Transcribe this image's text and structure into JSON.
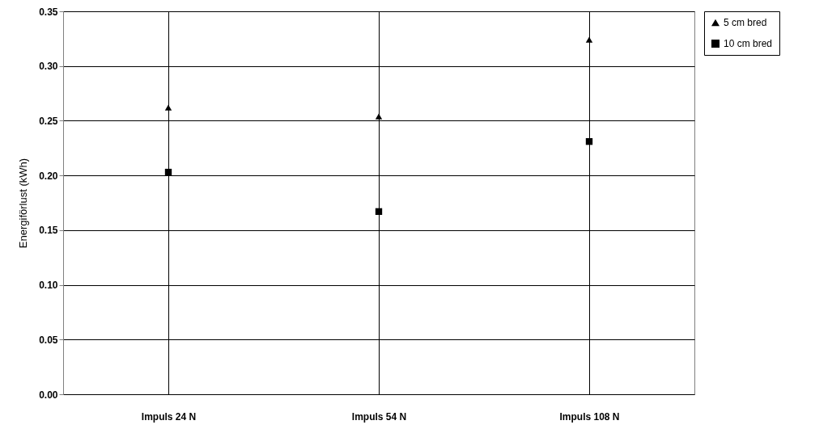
{
  "chart_data": {
    "type": "scatter",
    "ylabel": "Energiförlust (kWh)",
    "categories": [
      "Impuls 24 N",
      "Impuls 54 N",
      "Impuls 108 N"
    ],
    "series": [
      {
        "name": "5 cm bred",
        "color": "#000000",
        "marker": "triangle",
        "values": [
          0.262,
          0.254,
          0.324
        ]
      },
      {
        "name": "10 cm bred",
        "color": "#000000",
        "marker": "square",
        "values": [
          0.203,
          0.167,
          0.231
        ]
      }
    ],
    "ylim": [
      0,
      0.35
    ],
    "yticks": [
      {
        "value": 0,
        "label": "0.00"
      },
      {
        "value": 0.05,
        "label": "0.05"
      },
      {
        "value": 0.1,
        "label": "0.10"
      },
      {
        "value": 0.15,
        "label": "0.15"
      },
      {
        "value": 0.2,
        "label": "0.20"
      },
      {
        "value": 0.25,
        "label": "0.25"
      },
      {
        "value": 0.3,
        "label": "0.30"
      },
      {
        "value": 0.35,
        "label": "0.35"
      }
    ],
    "grid": true,
    "legend": "right"
  }
}
